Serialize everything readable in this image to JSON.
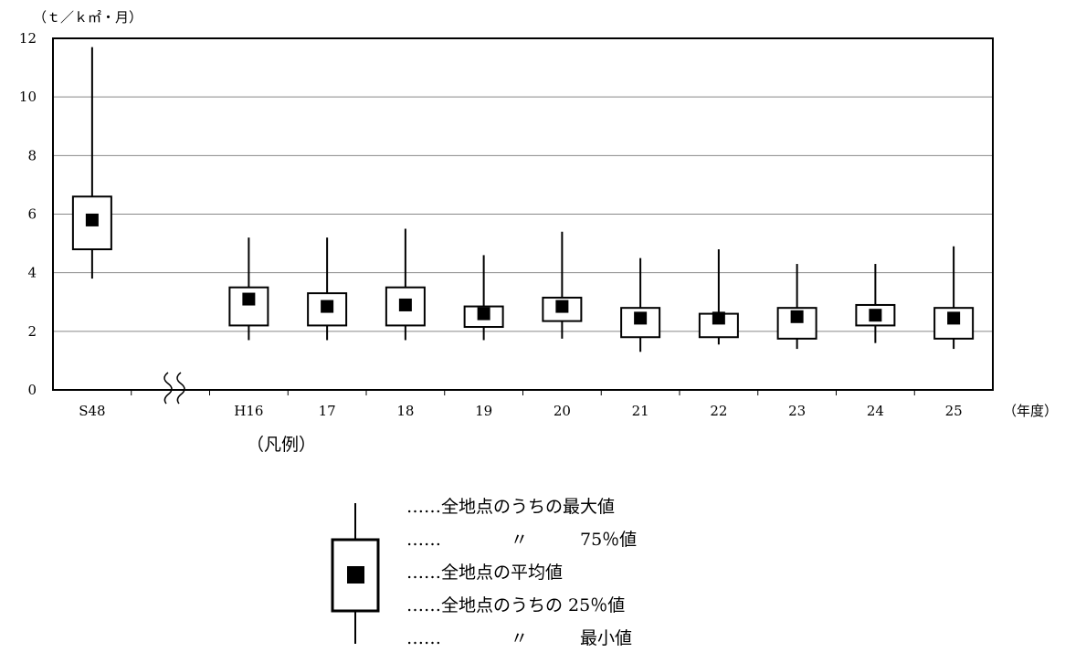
{
  "chart_data": {
    "type": "box",
    "y_unit": "（ｔ／ｋ㎡・月）",
    "x_unit": "（年度）",
    "ylim": [
      0,
      12
    ],
    "yticks": [
      "0",
      "2",
      "4",
      "6",
      "8",
      "10",
      "12"
    ],
    "grid": true,
    "axis_break_between": [
      "S48",
      "H16"
    ],
    "categories": [
      "S48",
      "H16",
      "17",
      "18",
      "19",
      "20",
      "21",
      "22",
      "23",
      "24",
      "25"
    ],
    "max": [
      11.7,
      5.2,
      5.2,
      5.5,
      4.6,
      5.4,
      4.5,
      4.8,
      4.3,
      4.3,
      4.9
    ],
    "q75": [
      6.6,
      3.5,
      3.3,
      3.5,
      2.85,
      3.15,
      2.8,
      2.6,
      2.8,
      2.9,
      2.8
    ],
    "mean": [
      5.8,
      3.1,
      2.85,
      2.9,
      2.6,
      2.85,
      2.45,
      2.45,
      2.5,
      2.55,
      2.45
    ],
    "q25": [
      4.8,
      2.2,
      2.2,
      2.2,
      2.15,
      2.35,
      1.8,
      1.8,
      1.75,
      2.2,
      1.75
    ],
    "min": [
      3.8,
      1.7,
      1.7,
      1.7,
      1.7,
      1.75,
      1.3,
      1.55,
      1.4,
      1.6,
      1.4
    ]
  },
  "legend": {
    "title": "（凡例）",
    "items": [
      "……全地点のうちの最大値",
      "……　　　　〃　　　75％値",
      "……全地点の平均値",
      "……全地点のうちの 25％値",
      "……　　　　〃　　　最小値"
    ]
  }
}
